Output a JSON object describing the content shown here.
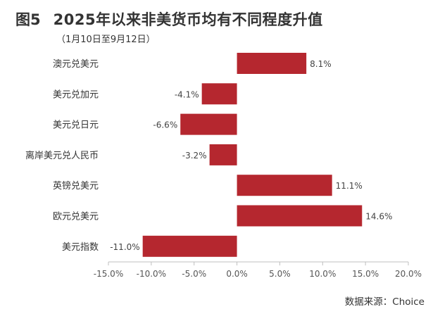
{
  "header": {
    "figure_number": "图5",
    "title": "2025年以来非美货币均有不同程度升值",
    "subtitle": "（1月10日至9月12日）"
  },
  "footer": {
    "source": "数据来源：Choice"
  },
  "colors": {
    "bar": "#b5272f",
    "axis": "#bfbfbf",
    "text": "#333333"
  },
  "chart_data": {
    "type": "bar",
    "orientation": "horizontal",
    "title": "2025年以来非美货币均有不同程度升值",
    "subtitle": "（1月10日至9月12日）",
    "categories": [
      "澳元兑美元",
      "美元兑加元",
      "美元兑日元",
      "离岸美元兑人民币",
      "英镑兑美元",
      "欧元兑美元",
      "美元指数"
    ],
    "values": [
      8.1,
      -4.1,
      -6.6,
      -3.2,
      11.1,
      14.6,
      -11.0
    ],
    "value_labels": [
      "8.1%",
      "-4.1%",
      "-6.6%",
      "-3.2%",
      "11.1%",
      "14.6%",
      "-11.0%"
    ],
    "xlim": [
      -15,
      20
    ],
    "xticks": [
      -15,
      -10,
      -5,
      0,
      5,
      10,
      15,
      20
    ],
    "xtick_labels": [
      "-15.0%",
      "-10.0%",
      "-5.0%",
      "0.0%",
      "5.0%",
      "10.0%",
      "15.0%",
      "20.0%"
    ],
    "xlabel": "",
    "ylabel": "",
    "grid": false,
    "legend": "none"
  }
}
